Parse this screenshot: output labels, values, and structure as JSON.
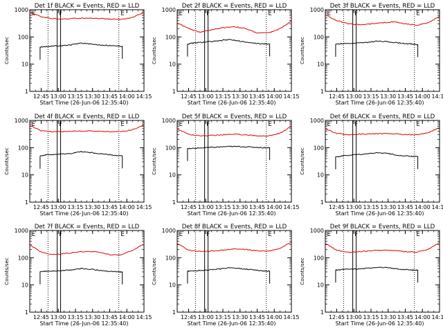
{
  "figure": {
    "colors": {
      "events": "#000000",
      "lld": "#e00000",
      "axes": "#000000"
    }
  },
  "chart_data": [
    {
      "type": "line",
      "title": "Det 1f BLACK = Events, RED = LLD",
      "ylabel": "Counts/sec",
      "xlabel": "Start Time (26-Jun-06 12:35:40)",
      "yscale": "log",
      "ylim": [
        1,
        1000
      ],
      "yticks": [
        "1",
        "10",
        "100",
        "1000"
      ],
      "xticks": [
        "12:45",
        "13:00",
        "13:15",
        "13:30",
        "13:45",
        "14:00",
        "14:15"
      ],
      "xlim": [
        "12:35",
        "14:15"
      ],
      "markers": [
        {
          "label": "E",
          "x": "12:36"
        },
        {
          "label": "F",
          "x": "13:00"
        },
        {
          "label": "E",
          "x": "13:54"
        }
      ],
      "dotted_lines_x": [
        "12:51",
        "13:53"
      ],
      "solid_lines_x": [
        "12:59",
        "13:02"
      ],
      "series": [
        {
          "name": "LLD",
          "color": "#e00000",
          "x": [
            "12:35",
            "12:45",
            "12:55",
            "13:05",
            "13:15",
            "13:25",
            "13:35",
            "13:45",
            "13:55",
            "14:05",
            "14:15"
          ],
          "values": [
            800,
            550,
            470,
            460,
            480,
            500,
            480,
            450,
            440,
            520,
            800
          ]
        },
        {
          "name": "Events",
          "color": "#000000",
          "x": [
            "12:44",
            "12:50",
            "13:00",
            "13:10",
            "13:20",
            "13:30",
            "13:40",
            "13:50",
            "13:56"
          ],
          "values": [
            42,
            45,
            47,
            50,
            60,
            53,
            50,
            47,
            45
          ]
        }
      ]
    },
    {
      "type": "line",
      "title": "Det 2f BLACK = Events, RED = LLD",
      "ylabel": "Counts/sec",
      "xlabel": "Start Time (26-Jun-06 12:35:40)",
      "yscale": "log",
      "ylim": [
        1,
        1000
      ],
      "yticks": [
        "1",
        "10",
        "100",
        "1000"
      ],
      "xticks": [
        "12:45",
        "13:00",
        "13:15",
        "13:30",
        "13:45",
        "14:00",
        "14:15"
      ],
      "xlim": [
        "12:35",
        "14:15"
      ],
      "markers": [
        {
          "label": "E",
          "x": "12:36"
        },
        {
          "label": "F",
          "x": "13:00"
        },
        {
          "label": "E",
          "x": "13:54"
        }
      ],
      "dotted_lines_x": [
        "12:51",
        "13:53"
      ],
      "solid_lines_x": [
        "12:59",
        "13:02"
      ],
      "series": [
        {
          "name": "LLD",
          "color": "#e00000",
          "x": [
            "12:35",
            "12:45",
            "12:55",
            "13:05",
            "13:15",
            "13:25",
            "13:35",
            "13:45",
            "13:55",
            "14:05",
            "14:15"
          ],
          "values": [
            330,
            200,
            150,
            180,
            220,
            240,
            200,
            140,
            140,
            200,
            380
          ]
        },
        {
          "name": "Events",
          "color": "#000000",
          "x": [
            "12:44",
            "12:50",
            "13:00",
            "13:10",
            "13:20",
            "13:30",
            "13:40",
            "13:50",
            "13:56"
          ],
          "values": [
            55,
            60,
            65,
            70,
            80,
            70,
            60,
            55,
            55
          ]
        }
      ]
    },
    {
      "type": "line",
      "title": "Det 3f BLACK = Events, RED = LLD",
      "ylabel": "Counts/sec",
      "xlabel": "Start Time (26-Jun-06 12:35:40)",
      "yscale": "log",
      "ylim": [
        1,
        1000
      ],
      "yticks": [
        "1",
        "10",
        "100",
        "1000"
      ],
      "xticks": [
        "12:45",
        "13:00",
        "13:15",
        "13:30",
        "13:45",
        "14:00",
        "14:15"
      ],
      "xlim": [
        "12:35",
        "14:15"
      ],
      "markers": [
        {
          "label": "E",
          "x": "12:36"
        },
        {
          "label": "F",
          "x": "13:00"
        },
        {
          "label": "E",
          "x": "13:54"
        }
      ],
      "dotted_lines_x": [
        "12:51",
        "13:53"
      ],
      "solid_lines_x": [
        "12:59",
        "13:02"
      ],
      "series": [
        {
          "name": "LLD",
          "color": "#e00000",
          "x": [
            "12:35",
            "12:45",
            "12:55",
            "13:05",
            "13:15",
            "13:25",
            "13:35",
            "13:45",
            "13:55",
            "14:05",
            "14:15"
          ],
          "values": [
            650,
            400,
            300,
            280,
            300,
            330,
            360,
            300,
            270,
            330,
            560
          ]
        },
        {
          "name": "Events",
          "color": "#000000",
          "x": [
            "12:44",
            "12:50",
            "13:00",
            "13:10",
            "13:20",
            "13:30",
            "13:40",
            "13:50",
            "13:56"
          ],
          "values": [
            55,
            57,
            58,
            62,
            70,
            66,
            60,
            55,
            52
          ]
        }
      ]
    },
    {
      "type": "line",
      "title": "Det 4f BLACK = Events, RED = LLD",
      "ylabel": "Counts/sec",
      "xlabel": "Start Time (26-Jun-06 12:35:40)",
      "yscale": "log",
      "ylim": [
        1,
        1000
      ],
      "yticks": [
        "1",
        "10",
        "100",
        "1000"
      ],
      "xticks": [
        "12:45",
        "13:00",
        "13:15",
        "13:30",
        "13:45",
        "14:00",
        "14:15"
      ],
      "xlim": [
        "12:35",
        "14:15"
      ],
      "markers": [
        {
          "label": "E",
          "x": "12:36"
        },
        {
          "label": "F",
          "x": "13:00"
        },
        {
          "label": "E",
          "x": "13:54"
        }
      ],
      "dotted_lines_x": [
        "12:51",
        "13:53"
      ],
      "solid_lines_x": [
        "12:59",
        "13:02"
      ],
      "series": [
        {
          "name": "LLD",
          "color": "#e00000",
          "x": [
            "12:35",
            "12:45",
            "12:55",
            "13:05",
            "13:15",
            "13:25",
            "13:35",
            "13:45",
            "13:55",
            "14:05",
            "14:15"
          ],
          "values": [
            650,
            420,
            380,
            390,
            400,
            410,
            400,
            390,
            390,
            450,
            700
          ]
        },
        {
          "name": "Events",
          "color": "#000000",
          "x": [
            "12:44",
            "12:50",
            "13:00",
            "13:10",
            "13:20",
            "13:30",
            "13:40",
            "13:50",
            "13:56"
          ],
          "values": [
            50,
            55,
            58,
            60,
            72,
            65,
            58,
            52,
            50
          ]
        }
      ]
    },
    {
      "type": "line",
      "title": "Det 5f BLACK = Events, RED = LLD",
      "ylabel": "Counts/sec",
      "xlabel": "Start Time (26-Jun-06 12:35:40)",
      "yscale": "log",
      "ylim": [
        1,
        1000
      ],
      "yticks": [
        "1",
        "10",
        "100",
        "1000"
      ],
      "xticks": [
        "12:45",
        "13:00",
        "13:15",
        "13:30",
        "13:45",
        "14:00",
        "14:15"
      ],
      "xlim": [
        "12:35",
        "14:15"
      ],
      "markers": [
        {
          "label": "E",
          "x": "12:36"
        },
        {
          "label": "F",
          "x": "13:00"
        },
        {
          "label": "E",
          "x": "13:54"
        }
      ],
      "dotted_lines_x": [
        "12:51",
        "13:53"
      ],
      "solid_lines_x": [
        "12:59",
        "13:02"
      ],
      "series": [
        {
          "name": "LLD",
          "color": "#e00000",
          "x": [
            "12:35",
            "12:45",
            "12:55",
            "13:05",
            "13:15",
            "13:25",
            "13:35",
            "13:45",
            "13:55",
            "14:05",
            "14:15"
          ],
          "values": [
            500,
            310,
            270,
            280,
            300,
            310,
            300,
            270,
            270,
            340,
            600
          ]
        },
        {
          "name": "Events",
          "color": "#000000",
          "x": [
            "12:44",
            "12:50",
            "13:00",
            "13:10",
            "13:20",
            "13:30",
            "13:40",
            "13:50",
            "13:56"
          ],
          "values": [
            90,
            95,
            100,
            105,
            110,
            110,
            105,
            100,
            100
          ]
        }
      ]
    },
    {
      "type": "line",
      "title": "Det 6f BLACK = Events, RED = LLD",
      "ylabel": "Counts/sec",
      "xlabel": "Start Time (26-Jun-06 12:35:40)",
      "yscale": "log",
      "ylim": [
        1,
        1000
      ],
      "yticks": [
        "1",
        "10",
        "100",
        "1000"
      ],
      "xticks": [
        "12:45",
        "13:00",
        "13:15",
        "13:30",
        "13:45",
        "14:00",
        "14:15"
      ],
      "xlim": [
        "12:35",
        "14:15"
      ],
      "markers": [
        {
          "label": "E",
          "x": "12:36"
        },
        {
          "label": "F",
          "x": "13:00"
        },
        {
          "label": "E",
          "x": "13:54"
        }
      ],
      "dotted_lines_x": [
        "12:51",
        "13:53"
      ],
      "solid_lines_x": [
        "12:59",
        "13:02"
      ],
      "series": [
        {
          "name": "LLD",
          "color": "#e00000",
          "x": [
            "12:35",
            "12:45",
            "12:55",
            "13:05",
            "13:15",
            "13:25",
            "13:35",
            "13:45",
            "13:55",
            "14:05",
            "14:15"
          ],
          "values": [
            500,
            330,
            300,
            310,
            320,
            330,
            320,
            300,
            300,
            350,
            550
          ]
        },
        {
          "name": "Events",
          "color": "#000000",
          "x": [
            "12:44",
            "12:50",
            "13:00",
            "13:10",
            "13:20",
            "13:30",
            "13:40",
            "13:50",
            "13:56"
          ],
          "values": [
            45,
            50,
            55,
            58,
            65,
            60,
            52,
            48,
            47
          ]
        }
      ]
    },
    {
      "type": "line",
      "title": "Det 7f BLACK = Events, RED = LLD",
      "ylabel": "Counts/sec",
      "xlabel": "Start Time (26-Jun-06 12:35:40)",
      "yscale": "log",
      "ylim": [
        1,
        1000
      ],
      "yticks": [
        "1",
        "10",
        "100",
        "1000"
      ],
      "xticks": [
        "12:45",
        "13:00",
        "13:15",
        "13:30",
        "13:45",
        "14:00",
        "14:15"
      ],
      "xlim": [
        "12:35",
        "14:15"
      ],
      "markers": [
        {
          "label": "E",
          "x": "12:36"
        },
        {
          "label": "F",
          "x": "13:00"
        },
        {
          "label": "E",
          "x": "13:54"
        }
      ],
      "dotted_lines_x": [
        "12:51",
        "13:53"
      ],
      "solid_lines_x": [
        "12:59",
        "13:02"
      ],
      "series": [
        {
          "name": "LLD",
          "color": "#e00000",
          "x": [
            "12:35",
            "12:45",
            "12:55",
            "13:05",
            "13:15",
            "13:25",
            "13:35",
            "13:45",
            "13:55",
            "14:05",
            "14:15"
          ],
          "values": [
            300,
            160,
            130,
            140,
            160,
            170,
            160,
            130,
            130,
            180,
            320
          ]
        },
        {
          "name": "Events",
          "color": "#000000",
          "x": [
            "12:44",
            "12:50",
            "13:00",
            "13:10",
            "13:20",
            "13:30",
            "13:40",
            "13:50",
            "13:56"
          ],
          "values": [
            30,
            32,
            33,
            35,
            40,
            37,
            33,
            31,
            30
          ]
        }
      ]
    },
    {
      "type": "line",
      "title": "Det 8f BLACK = Events, RED = LLD",
      "ylabel": "Counts/sec",
      "xlabel": "Start Time (26-Jun-06 12:35:40)",
      "yscale": "log",
      "ylim": [
        1,
        1000
      ],
      "yticks": [
        "1",
        "10",
        "100",
        "1000"
      ],
      "xticks": [
        "12:45",
        "13:00",
        "13:15",
        "13:30",
        "13:45",
        "14:00",
        "14:15"
      ],
      "xlim": [
        "12:35",
        "14:15"
      ],
      "markers": [
        {
          "label": "E",
          "x": "12:36"
        },
        {
          "label": "F",
          "x": "13:00"
        },
        {
          "label": "E",
          "x": "13:54"
        }
      ],
      "dotted_lines_x": [
        "12:51",
        "13:53"
      ],
      "solid_lines_x": [
        "12:59",
        "13:02"
      ],
      "series": [
        {
          "name": "LLD",
          "color": "#e00000",
          "x": [
            "12:35",
            "12:45",
            "12:55",
            "13:05",
            "13:15",
            "13:25",
            "13:35",
            "13:45",
            "13:55",
            "14:05",
            "14:15"
          ],
          "values": [
            330,
            190,
            170,
            175,
            190,
            210,
            200,
            180,
            175,
            220,
            380
          ]
        },
        {
          "name": "Events",
          "color": "#000000",
          "x": [
            "12:44",
            "12:50",
            "13:00",
            "13:10",
            "13:20",
            "13:30",
            "13:40",
            "13:50",
            "13:56"
          ],
          "values": [
            32,
            33,
            35,
            38,
            42,
            40,
            36,
            33,
            32
          ]
        }
      ]
    },
    {
      "type": "line",
      "title": "Det 9f BLACK = Events, RED = LLD",
      "ylabel": "Counts/sec",
      "xlabel": "Start Time (26-Jun-06 12:35:40)",
      "yscale": "log",
      "ylim": [
        1,
        1000
      ],
      "yticks": [
        "1",
        "10",
        "100",
        "1000"
      ],
      "xticks": [
        "12:45",
        "13:00",
        "13:15",
        "13:30",
        "13:45",
        "14:00",
        "14:15"
      ],
      "xlim": [
        "12:35",
        "14:15"
      ],
      "markers": [
        {
          "label": "E",
          "x": "12:36"
        },
        {
          "label": "F",
          "x": "13:00"
        },
        {
          "label": "E",
          "x": "13:54"
        }
      ],
      "dotted_lines_x": [
        "12:51",
        "13:53"
      ],
      "solid_lines_x": [
        "12:59",
        "13:02"
      ],
      "series": [
        {
          "name": "LLD",
          "color": "#e00000",
          "x": [
            "12:35",
            "12:45",
            "12:55",
            "13:05",
            "13:15",
            "13:25",
            "13:35",
            "13:45",
            "13:55",
            "14:05",
            "14:15"
          ],
          "values": [
            330,
            190,
            160,
            165,
            180,
            190,
            185,
            165,
            160,
            200,
            360
          ]
        },
        {
          "name": "Events",
          "color": "#000000",
          "x": [
            "12:44",
            "12:50",
            "13:00",
            "13:10",
            "13:20",
            "13:30",
            "13:40",
            "13:50",
            "13:56"
          ],
          "values": [
            35,
            37,
            38,
            40,
            45,
            42,
            38,
            35,
            35
          ]
        }
      ]
    }
  ]
}
